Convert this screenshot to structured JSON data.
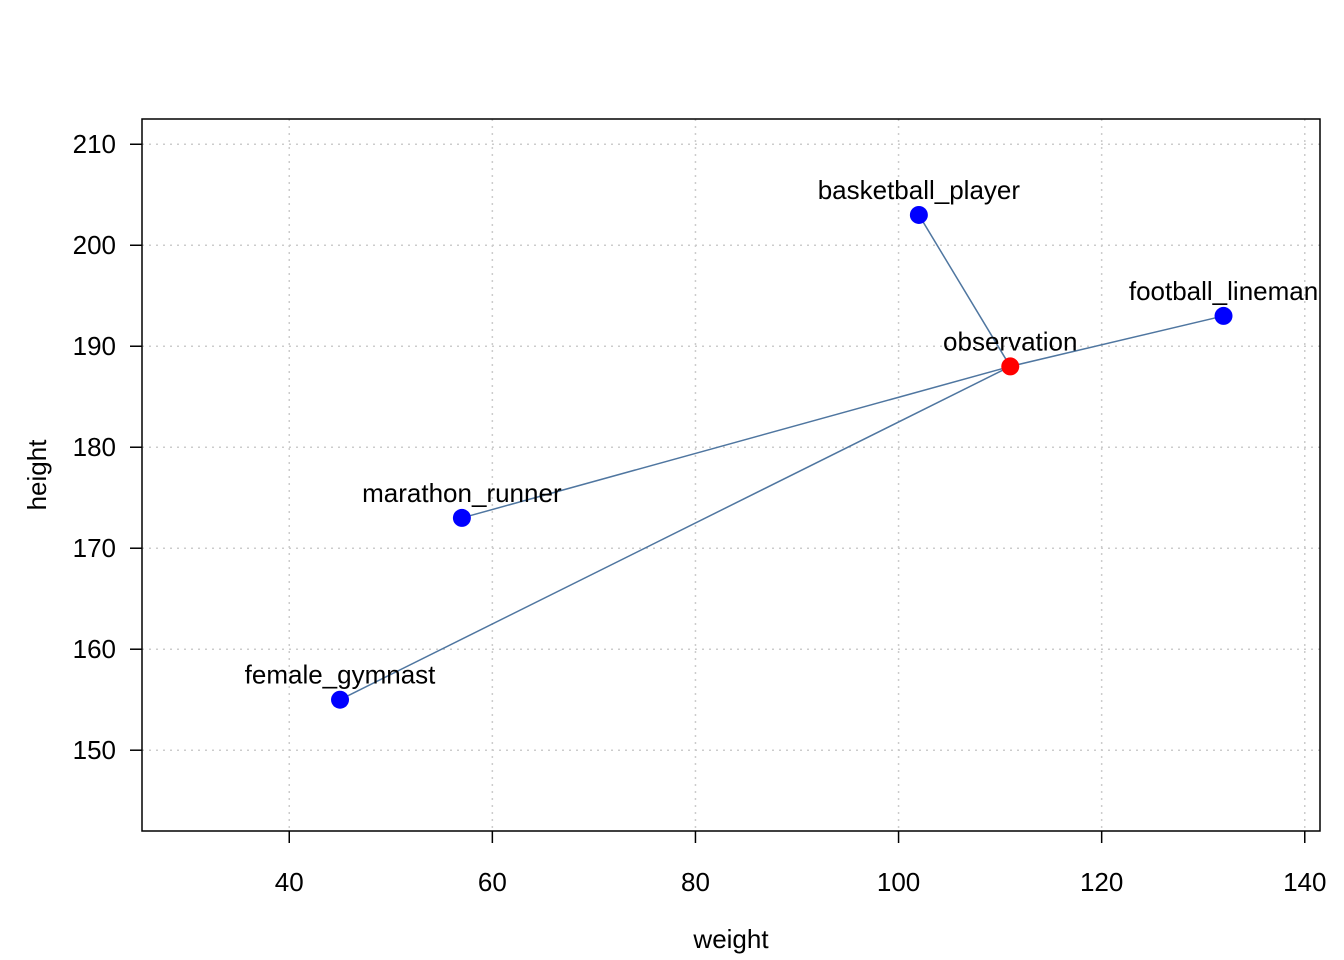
{
  "chart_data": {
    "type": "scatter",
    "title": "",
    "xlabel": "weight",
    "ylabel": "height",
    "xlim": [
      25.5,
      141.5
    ],
    "ylim": [
      142.0,
      212.5
    ],
    "xticks": [
      40,
      60,
      80,
      100,
      120,
      140
    ],
    "yticks": [
      150,
      160,
      170,
      180,
      190,
      200,
      210
    ],
    "grid": true,
    "points": [
      {
        "label": "basketball_player",
        "x": 102,
        "y": 203,
        "color": "#0000ff",
        "role": "reference"
      },
      {
        "label": "football_lineman",
        "x": 132,
        "y": 193,
        "color": "#0000ff",
        "role": "reference"
      },
      {
        "label": "marathon_runner",
        "x": 57,
        "y": 173,
        "color": "#0000ff",
        "role": "reference"
      },
      {
        "label": "female_gymnast",
        "x": 45,
        "y": 155,
        "color": "#0000ff",
        "role": "reference"
      },
      {
        "label": "observation",
        "x": 111,
        "y": 188,
        "color": "#ff0000",
        "role": "query"
      }
    ],
    "link_color": "#4f76a0"
  }
}
